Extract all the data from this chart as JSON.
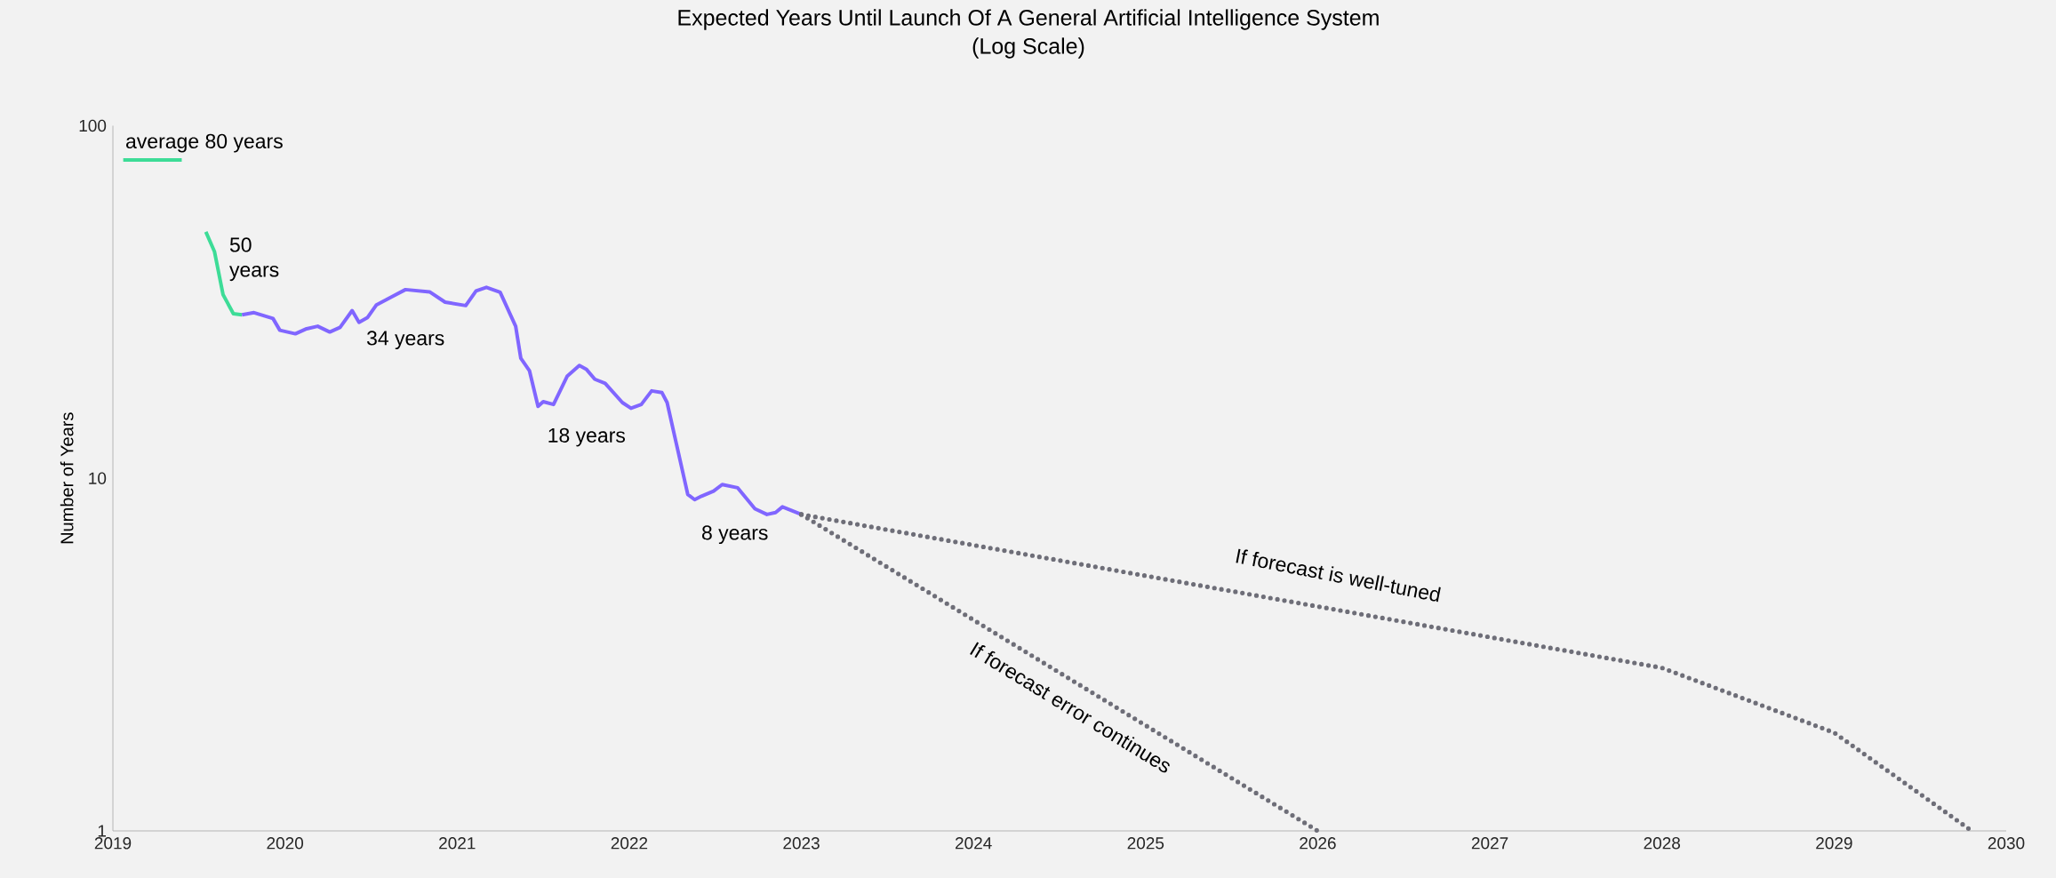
{
  "chart_data": {
    "type": "line",
    "title": "Expected Years Until Launch Of A General Artificial Intelligence System",
    "subtitle": "(Log Scale)",
    "ylabel": "Number of Years",
    "xlim": [
      2019,
      2030
    ],
    "xticks": [
      2019,
      2020,
      2021,
      2022,
      2023,
      2024,
      2025,
      2026,
      2027,
      2028,
      2029,
      2030
    ],
    "ylim": [
      1,
      100
    ],
    "yticks": [
      1,
      10,
      100
    ],
    "log": "y",
    "series": [
      {
        "color": "#3ddc97",
        "x": [
          2019.06,
          2019.4
        ],
        "values": [
          80,
          80
        ]
      },
      {
        "color": "#3ddc97",
        "x": [
          2019.54,
          2019.59,
          2019.64,
          2019.7,
          2019.75
        ],
        "values": [
          50,
          44,
          33.2,
          29.3,
          29.1
        ]
      },
      {
        "color": "#8066ff",
        "x": [
          2019.75,
          2019.82,
          2019.93,
          2019.97,
          2020.06,
          2020.12,
          2020.19,
          2020.26,
          2020.32,
          2020.39,
          2020.43,
          2020.48,
          2020.53,
          2020.62,
          2020.7,
          2020.84,
          2020.93,
          2021.05,
          2021.11,
          2021.17,
          2021.25,
          2021.34,
          2021.37,
          2021.42,
          2021.47,
          2021.5,
          2021.56,
          2021.64,
          2021.71,
          2021.75,
          2021.8,
          2021.86,
          2021.96,
          2022.01,
          2022.07,
          2022.13,
          2022.19,
          2022.22,
          2022.34,
          2022.38,
          2022.42,
          2022.49,
          2022.54,
          2022.63,
          2022.73,
          2022.8,
          2022.85,
          2022.89,
          2023.0
        ],
        "values": [
          29.1,
          29.5,
          28.4,
          26.3,
          25.7,
          26.5,
          27.0,
          26.0,
          26.8,
          29.9,
          27.7,
          28.6,
          31.0,
          32.7,
          34.3,
          33.8,
          31.6,
          30.9,
          34.0,
          34.8,
          33.7,
          27.0,
          21.9,
          20.2,
          16.0,
          16.5,
          16.2,
          19.5,
          20.9,
          20.4,
          19.1,
          18.6,
          16.4,
          15.8,
          16.2,
          17.7,
          17.5,
          16.4,
          9.0,
          8.7,
          8.9,
          9.2,
          9.6,
          9.4,
          8.2,
          7.9,
          8.0,
          8.3,
          7.9
        ]
      },
      {
        "color": "#6e6e78",
        "line_style": "dotted",
        "x": [
          2023.0,
          2028.0,
          2029.0,
          2029.8
        ],
        "values": [
          7.9,
          2.9,
          1.9,
          1
        ]
      },
      {
        "color": "#6e6e78",
        "line_style": "dotted",
        "x": [
          2023.0,
          2026.0
        ],
        "values": [
          7.9,
          1
        ]
      }
    ],
    "annotations": [
      {
        "text": "average 80 years",
        "x": 2019.06,
        "y": 80
      },
      {
        "text": "50 years",
        "x": 2019.54,
        "y": 50
      },
      {
        "text": "34 years",
        "x": 2020.7,
        "y": 34.3
      },
      {
        "text": "18 years",
        "x": 2021.47,
        "y": 16.0
      },
      {
        "text": "8 years",
        "x": 2022.8,
        "y": 7.9
      },
      {
        "text": "If forecast is well-tuned",
        "x": 2026.08,
        "y": 4.26
      },
      {
        "text": "If forecast error continues",
        "x": 2024.55,
        "y": 2.72
      }
    ]
  }
}
